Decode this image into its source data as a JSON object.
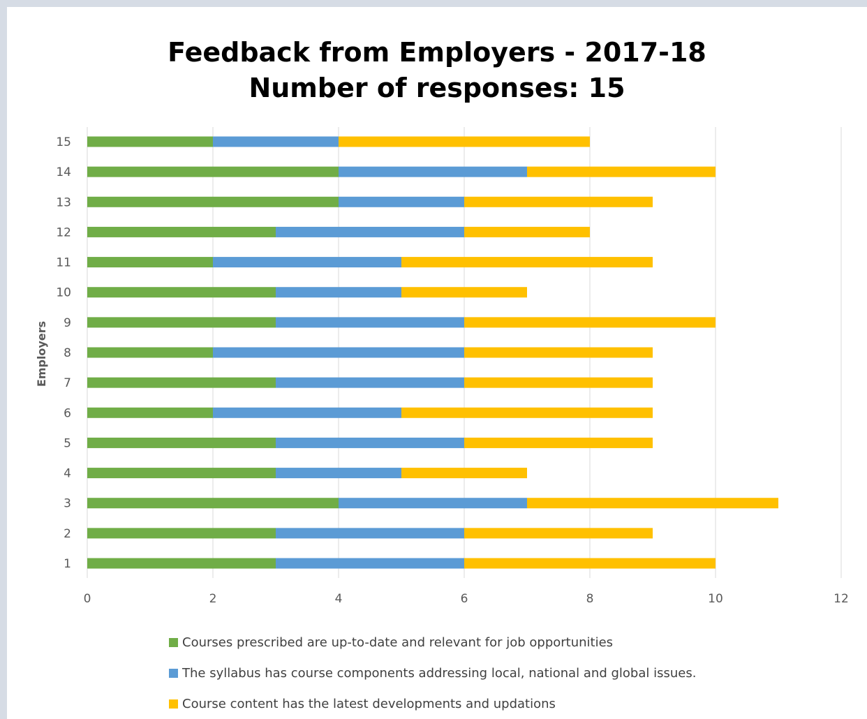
{
  "chart_data": {
    "type": "bar",
    "orientation": "horizontal",
    "stacked": true,
    "title": "Feedback from Employers - 2017-18",
    "subtitle": "Number of responses: 15",
    "ylabel": "Employers",
    "xlabel": "",
    "categories": [
      "1",
      "2",
      "3",
      "4",
      "5",
      "6",
      "7",
      "8",
      "9",
      "10",
      "11",
      "12",
      "13",
      "14",
      "15"
    ],
    "xlim": [
      0,
      12
    ],
    "x_ticks": [
      "0",
      "2",
      "4",
      "6",
      "8",
      "10",
      "12"
    ],
    "grid": true,
    "legend_position": "bottom",
    "series": [
      {
        "name": "Courses prescribed are up-to-date and relevant for job opportunities",
        "color": "#70ad47",
        "values": [
          3,
          3,
          4,
          3,
          3,
          2,
          3,
          2,
          3,
          3,
          2,
          3,
          4,
          4,
          2
        ]
      },
      {
        "name": "The syllabus has course components addressing local, national and global issues.",
        "color": "#5b9bd5",
        "values": [
          3,
          3,
          3,
          2,
          3,
          3,
          3,
          4,
          3,
          2,
          3,
          3,
          2,
          3,
          2
        ]
      },
      {
        "name": "Course content has the latest developments and updations",
        "color": "#ffc000",
        "values": [
          4,
          3,
          4,
          2,
          3,
          4,
          3,
          3,
          4,
          2,
          4,
          2,
          3,
          3,
          4
        ]
      }
    ]
  }
}
